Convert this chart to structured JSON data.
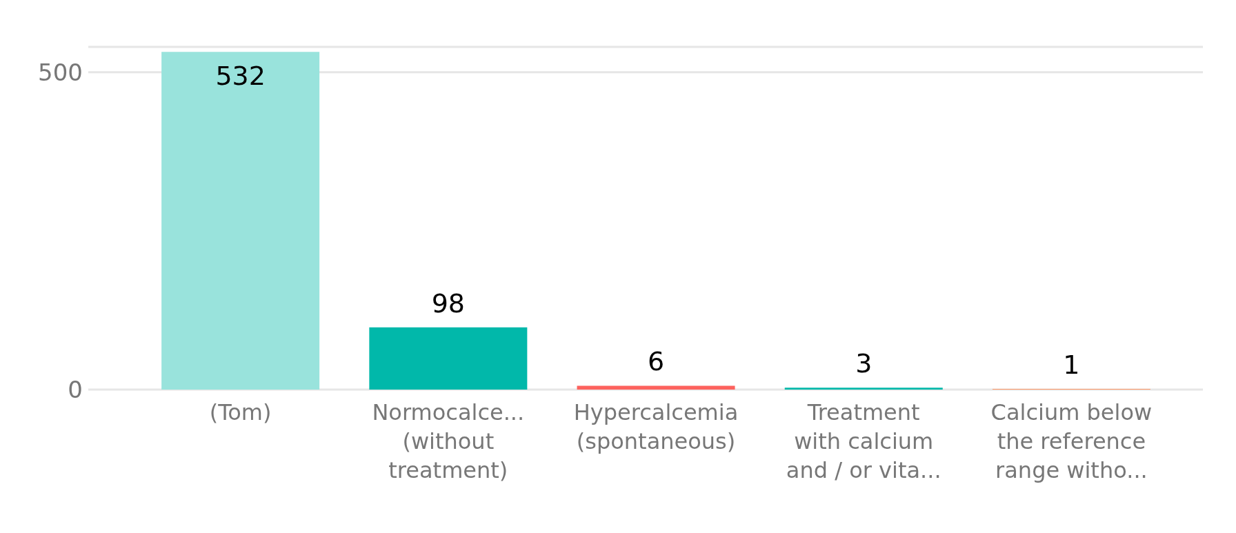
{
  "chart_data": {
    "type": "bar",
    "categories": [
      "(Tom)",
      "Normocalce...\n(without\ntreatment)",
      "Hypercalcemia\n(spontaneous)",
      "Treatment\nwith calcium\nand / or vita...",
      "Calcium below\nthe reference\nrange witho..."
    ],
    "values": [
      532,
      98,
      6,
      3,
      1
    ],
    "colors": [
      "#99e3dc",
      "#01b8aa",
      "#fd625e",
      "#01b8aa",
      "#fe9666"
    ],
    "ylim": [
      0,
      540
    ],
    "yticks": [
      0,
      500
    ],
    "grid": "y",
    "data_labels": true
  }
}
